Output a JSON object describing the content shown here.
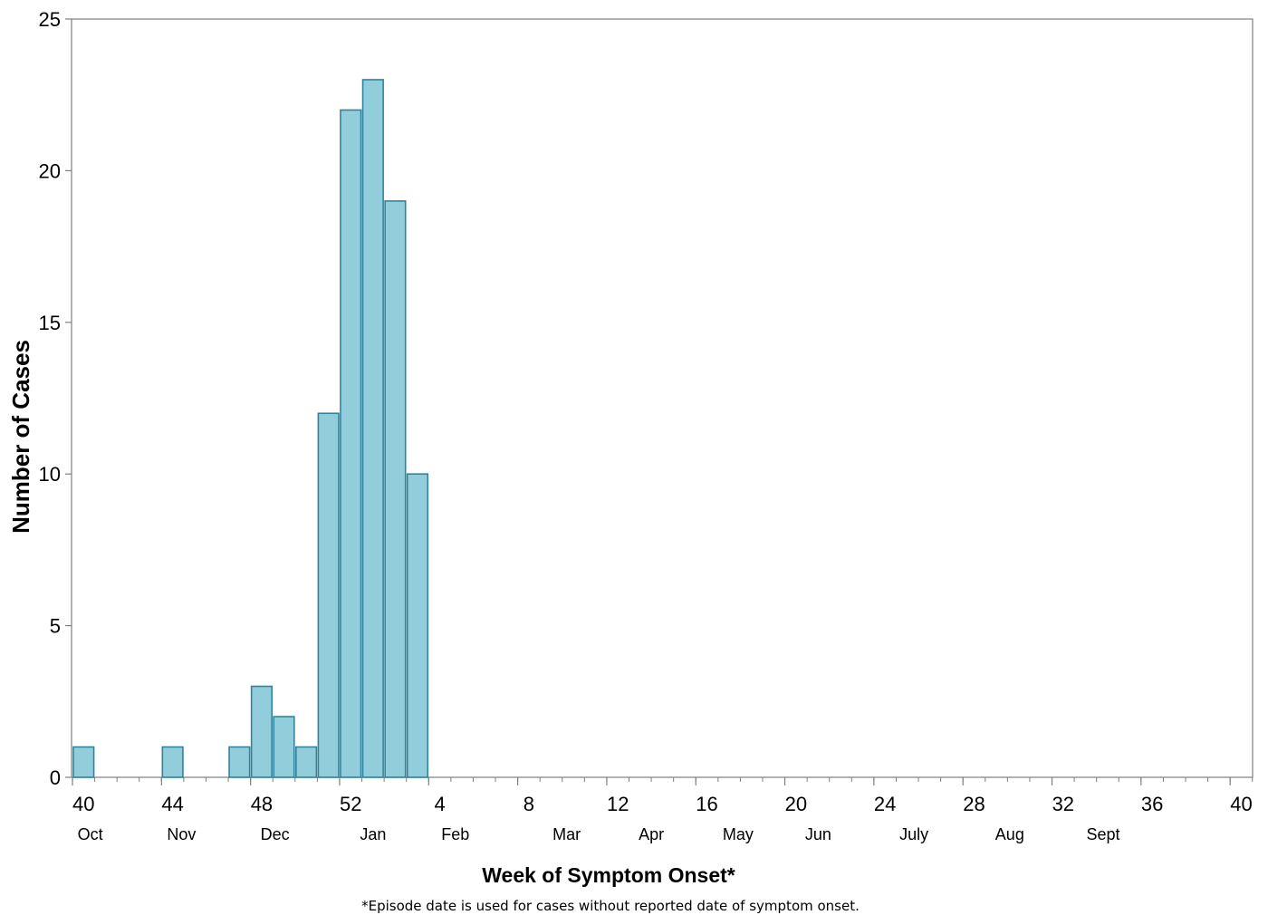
{
  "chart_data": {
    "type": "bar",
    "xlabel": "Week of Symptom Onset*",
    "ylabel": "Number of Cases",
    "footnote": "*Episode date is used for cases without reported date of symptom onset.",
    "ylim": [
      0,
      25
    ],
    "yticks": [
      "0",
      "5",
      "10",
      "15",
      "20",
      "25"
    ],
    "x_tick_labels": [
      "40",
      "44",
      "48",
      "52",
      "4",
      "8",
      "12",
      "16",
      "20",
      "24",
      "28",
      "32",
      "36",
      "40"
    ],
    "month_labels": [
      {
        "label": "Oct",
        "week": 40.3
      },
      {
        "label": "Nov",
        "week": 44.4
      },
      {
        "label": "Dec",
        "week": 48.6
      },
      {
        "label": "Jan",
        "week": 53.0
      },
      {
        "label": "Feb",
        "week": 56.7
      },
      {
        "label": "Mar",
        "week": 61.7
      },
      {
        "label": "Apr",
        "week": 65.5
      },
      {
        "label": "May",
        "week": 69.4
      },
      {
        "label": "Jun",
        "week": 73.0
      },
      {
        "label": "July",
        "week": 77.3
      },
      {
        "label": "Aug",
        "week": 81.6
      },
      {
        "label": "Sept",
        "week": 85.8
      }
    ],
    "categories": [
      "40",
      "41",
      "42",
      "43",
      "44",
      "45",
      "46",
      "47",
      "48",
      "49",
      "50",
      "51",
      "52",
      "53",
      "1",
      "2",
      "3",
      "4",
      "5",
      "6",
      "7",
      "8",
      "9",
      "10",
      "11",
      "12",
      "13",
      "14",
      "15",
      "16",
      "17",
      "18",
      "19",
      "20",
      "21",
      "22",
      "23",
      "24",
      "25",
      "26",
      "27",
      "28",
      "29",
      "30",
      "31",
      "32",
      "33",
      "34",
      "35",
      "36",
      "37",
      "38",
      "39",
      "40"
    ],
    "values": [
      1,
      0,
      0,
      0,
      1,
      0,
      0,
      1,
      3,
      2,
      1,
      12,
      22,
      23,
      19,
      10,
      0,
      0,
      0,
      0,
      0,
      0,
      0,
      0,
      0,
      0,
      0,
      0,
      0,
      0,
      0,
      0,
      0,
      0,
      0,
      0,
      0,
      0,
      0,
      0,
      0,
      0,
      0,
      0,
      0,
      0,
      0,
      0,
      0,
      0,
      0,
      0,
      0,
      0
    ],
    "bar_color": "#92CDDC",
    "bar_edge_color": "#31849B",
    "grid": false
  }
}
